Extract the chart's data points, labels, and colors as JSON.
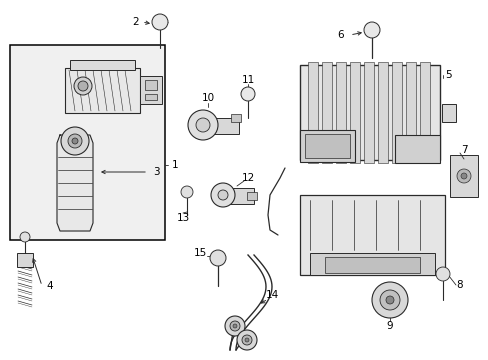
{
  "bg": "#ffffff",
  "lc": "#2a2a2a",
  "fc": "#f0f0f0",
  "fc2": "#e0e0e0",
  "fig_w": 4.89,
  "fig_h": 3.6,
  "dpi": 100
}
